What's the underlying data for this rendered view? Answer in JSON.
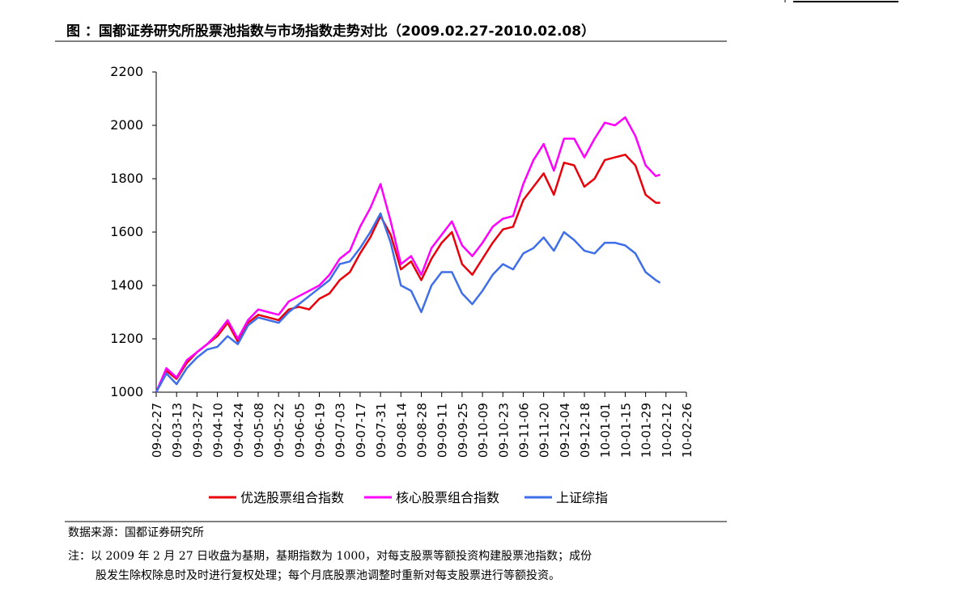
{
  "chart_data": {
    "type": "line",
    "title": "图 ：国都证券研究所股票池指数与市场指数走势对比（2009.02.27-2010.02.08）",
    "x": [
      "09-02-27",
      "09-03-06",
      "09-03-13",
      "09-03-20",
      "09-03-27",
      "09-04-03",
      "09-04-10",
      "09-04-17",
      "09-04-24",
      "09-05-01",
      "09-05-08",
      "09-05-15",
      "09-05-22",
      "09-05-29",
      "09-06-05",
      "09-06-12",
      "09-06-19",
      "09-06-26",
      "09-07-03",
      "09-07-10",
      "09-07-17",
      "09-07-24",
      "09-07-31",
      "09-08-07",
      "09-08-14",
      "09-08-21",
      "09-08-28",
      "09-09-04",
      "09-09-11",
      "09-09-18",
      "09-09-25",
      "09-10-02",
      "09-10-09",
      "09-10-16",
      "09-10-23",
      "09-10-30",
      "09-11-06",
      "09-11-13",
      "09-11-20",
      "09-11-27",
      "09-12-04",
      "09-12-11",
      "09-12-18",
      "09-12-25",
      "10-01-01",
      "10-01-08",
      "10-01-15",
      "10-01-22",
      "10-01-29",
      "10-02-05",
      "10-02-08"
    ],
    "series": [
      {
        "name": "优选股票组合指数",
        "color": "#e8000b",
        "values": [
          1000,
          1080,
          1050,
          1110,
          1150,
          1180,
          1210,
          1260,
          1190,
          1260,
          1290,
          1280,
          1270,
          1310,
          1320,
          1310,
          1350,
          1370,
          1420,
          1450,
          1520,
          1580,
          1660,
          1590,
          1460,
          1490,
          1420,
          1500,
          1560,
          1600,
          1480,
          1440,
          1500,
          1560,
          1610,
          1620,
          1720,
          1770,
          1820,
          1740,
          1860,
          1850,
          1770,
          1800,
          1870,
          1880,
          1890,
          1850,
          1740,
          1710,
          1710
        ]
      },
      {
        "name": "核心股票组合指数",
        "color": "#ff00ff",
        "values": [
          1000,
          1090,
          1055,
          1120,
          1150,
          1180,
          1220,
          1270,
          1200,
          1270,
          1310,
          1300,
          1290,
          1340,
          1360,
          1380,
          1400,
          1440,
          1500,
          1530,
          1620,
          1690,
          1780,
          1640,
          1480,
          1510,
          1440,
          1540,
          1590,
          1640,
          1550,
          1510,
          1560,
          1620,
          1650,
          1660,
          1780,
          1870,
          1930,
          1830,
          1950,
          1950,
          1880,
          1950,
          2010,
          2000,
          2030,
          1960,
          1850,
          1810,
          1815
        ]
      },
      {
        "name": "上证综指",
        "color": "#3f6fe8",
        "values": [
          1000,
          1070,
          1030,
          1090,
          1130,
          1160,
          1170,
          1210,
          1180,
          1250,
          1280,
          1270,
          1260,
          1300,
          1330,
          1360,
          1390,
          1420,
          1480,
          1490,
          1540,
          1600,
          1670,
          1560,
          1400,
          1380,
          1300,
          1400,
          1450,
          1450,
          1370,
          1330,
          1380,
          1440,
          1480,
          1460,
          1520,
          1540,
          1580,
          1530,
          1600,
          1570,
          1530,
          1520,
          1560,
          1560,
          1550,
          1520,
          1450,
          1420,
          1410
        ]
      }
    ],
    "xlim": [
      "09-02-27",
      "10-02-26"
    ],
    "xticks": [
      "09-02-27",
      "09-03-13",
      "09-03-27",
      "09-04-10",
      "09-04-24",
      "09-05-08",
      "09-05-22",
      "09-06-05",
      "09-06-19",
      "09-07-03",
      "09-07-17",
      "09-07-31",
      "09-08-14",
      "09-08-28",
      "09-09-11",
      "09-09-25",
      "09-10-09",
      "09-10-23",
      "09-11-06",
      "09-11-20",
      "09-12-04",
      "09-12-18",
      "10-01-01",
      "10-01-15",
      "10-01-29",
      "10-02-12",
      "10-02-26"
    ],
    "ylim": [
      1000,
      2200
    ],
    "yticks": [
      1000,
      1200,
      1400,
      1600,
      1800,
      2000,
      2200
    ],
    "grid": false,
    "legend": "bottom"
  },
  "footer": {
    "source": "数据来源：国都证券研究所",
    "note": [
      "注：以 2009 年 2 月 27 日收盘为基期，基期指数为 1000，对每支股票等额投资构建股票池指数；成份",
      "股发生除权除息时及时进行复权处理；每个月底股票池调整时重新对每支股票进行等额投资。"
    ]
  }
}
